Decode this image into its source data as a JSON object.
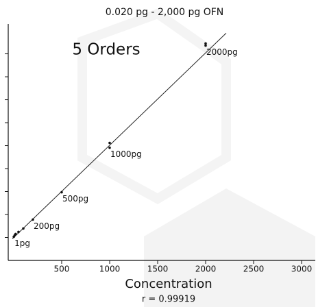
{
  "chart_data": {
    "type": "scatter",
    "title": "0.020 pg - 2,000 pg OFN",
    "annotation": "5 Orders",
    "x_label": "Concentration",
    "subtitle": "r = 0.99919",
    "x": [
      1,
      10,
      20,
      50,
      100,
      200,
      500,
      1000,
      1000,
      2000,
      2000
    ],
    "y": [
      1.03,
      1.09,
      1.15,
      1.24,
      1.39,
      1.78,
      2.97,
      5.12,
      4.91,
      9.36,
      9.45
    ],
    "point_labels": [
      "1pg",
      null,
      null,
      null,
      null,
      "200pg",
      "500pg",
      null,
      "1000pg",
      "2000pg",
      null
    ],
    "color": "#111111",
    "fit_line": {
      "x": [
        -14,
        2214
      ],
      "y": [
        0.94,
        9.9
      ]
    },
    "xlim": [
      -57,
      3100
    ],
    "xticks": [
      500,
      1000,
      1500,
      2000,
      2500,
      3000
    ],
    "ylim": [
      0,
      10.3
    ],
    "yticks": [
      1,
      2,
      3,
      4,
      5,
      6,
      7,
      8,
      9
    ]
  }
}
